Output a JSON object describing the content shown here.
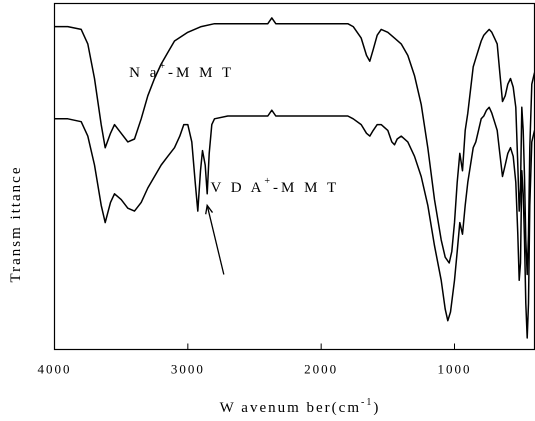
{
  "chart_data": {
    "type": "line",
    "xlabel": "W avenum ber(cm",
    "xlabel_sup": "-1",
    "xlabel_close": ")",
    "ylabel": "Transm ittance",
    "xlim": [
      4000,
      400
    ],
    "x_reversed": true,
    "xticks": [
      {
        "value": 4000,
        "label": "4000"
      },
      {
        "value": 3000,
        "label": "3000"
      },
      {
        "value": 2000,
        "label": "2000"
      },
      {
        "value": 1000,
        "label": "1000"
      }
    ],
    "y_ticks_shown": false,
    "grid": false,
    "series": [
      {
        "label_base": "N a",
        "label_sup": "+",
        "label_tail": "-M M T",
        "label_anchor_x": 3440,
        "points": [
          [
            4000,
            0.92
          ],
          [
            3900,
            0.92
          ],
          [
            3800,
            0.91
          ],
          [
            3750,
            0.86
          ],
          [
            3700,
            0.74
          ],
          [
            3650,
            0.58
          ],
          [
            3620,
            0.5
          ],
          [
            3580,
            0.55
          ],
          [
            3550,
            0.58
          ],
          [
            3500,
            0.55
          ],
          [
            3450,
            0.52
          ],
          [
            3400,
            0.53
          ],
          [
            3350,
            0.6
          ],
          [
            3300,
            0.68
          ],
          [
            3250,
            0.74
          ],
          [
            3200,
            0.79
          ],
          [
            3150,
            0.83
          ],
          [
            3100,
            0.87
          ],
          [
            3000,
            0.9
          ],
          [
            2900,
            0.92
          ],
          [
            2800,
            0.93
          ],
          [
            2600,
            0.93
          ],
          [
            2400,
            0.93
          ],
          [
            2370,
            0.95
          ],
          [
            2340,
            0.93
          ],
          [
            2300,
            0.93
          ],
          [
            2200,
            0.93
          ],
          [
            2000,
            0.93
          ],
          [
            1900,
            0.93
          ],
          [
            1800,
            0.93
          ],
          [
            1760,
            0.92
          ],
          [
            1700,
            0.88
          ],
          [
            1660,
            0.82
          ],
          [
            1635,
            0.8
          ],
          [
            1610,
            0.84
          ],
          [
            1580,
            0.89
          ],
          [
            1550,
            0.91
          ],
          [
            1500,
            0.9
          ],
          [
            1450,
            0.88
          ],
          [
            1400,
            0.86
          ],
          [
            1350,
            0.82
          ],
          [
            1300,
            0.75
          ],
          [
            1250,
            0.65
          ],
          [
            1200,
            0.5
          ],
          [
            1150,
            0.32
          ],
          [
            1100,
            0.18
          ],
          [
            1070,
            0.12
          ],
          [
            1040,
            0.1
          ],
          [
            1020,
            0.14
          ],
          [
            1000,
            0.24
          ],
          [
            980,
            0.38
          ],
          [
            960,
            0.48
          ],
          [
            940,
            0.42
          ],
          [
            920,
            0.56
          ],
          [
            900,
            0.62
          ],
          [
            880,
            0.7
          ],
          [
            860,
            0.78
          ],
          [
            840,
            0.81
          ],
          [
            820,
            0.84
          ],
          [
            800,
            0.87
          ],
          [
            780,
            0.89
          ],
          [
            760,
            0.9
          ],
          [
            740,
            0.91
          ],
          [
            720,
            0.9
          ],
          [
            700,
            0.88
          ],
          [
            680,
            0.86
          ],
          [
            660,
            0.76
          ],
          [
            640,
            0.66
          ],
          [
            620,
            0.68
          ],
          [
            600,
            0.72
          ],
          [
            580,
            0.74
          ],
          [
            560,
            0.71
          ],
          [
            540,
            0.64
          ],
          [
            525,
            0.44
          ],
          [
            515,
            0.28
          ],
          [
            505,
            0.36
          ],
          [
            495,
            0.64
          ],
          [
            485,
            0.56
          ],
          [
            475,
            0.4
          ],
          [
            465,
            0.18
          ],
          [
            455,
            0.06
          ],
          [
            445,
            0.2
          ],
          [
            435,
            0.5
          ],
          [
            420,
            0.72
          ],
          [
            400,
            0.76
          ]
        ]
      },
      {
        "label_base": "V D A",
        "label_sup": "+",
        "label_tail": "-M M T",
        "label_anchor_x": 2830,
        "points": [
          [
            4000,
            0.6
          ],
          [
            3900,
            0.6
          ],
          [
            3800,
            0.59
          ],
          [
            3750,
            0.54
          ],
          [
            3700,
            0.44
          ],
          [
            3650,
            0.3
          ],
          [
            3620,
            0.24
          ],
          [
            3580,
            0.31
          ],
          [
            3550,
            0.34
          ],
          [
            3500,
            0.32
          ],
          [
            3450,
            0.29
          ],
          [
            3400,
            0.28
          ],
          [
            3350,
            0.31
          ],
          [
            3300,
            0.36
          ],
          [
            3250,
            0.4
          ],
          [
            3200,
            0.44
          ],
          [
            3150,
            0.47
          ],
          [
            3100,
            0.5
          ],
          [
            3060,
            0.54
          ],
          [
            3030,
            0.58
          ],
          [
            3000,
            0.58
          ],
          [
            2970,
            0.52
          ],
          [
            2945,
            0.38
          ],
          [
            2925,
            0.28
          ],
          [
            2905,
            0.42
          ],
          [
            2890,
            0.49
          ],
          [
            2870,
            0.44
          ],
          [
            2855,
            0.34
          ],
          [
            2840,
            0.48
          ],
          [
            2820,
            0.58
          ],
          [
            2800,
            0.6
          ],
          [
            2700,
            0.61
          ],
          [
            2600,
            0.61
          ],
          [
            2400,
            0.61
          ],
          [
            2370,
            0.63
          ],
          [
            2340,
            0.61
          ],
          [
            2300,
            0.61
          ],
          [
            2100,
            0.61
          ],
          [
            2000,
            0.61
          ],
          [
            1900,
            0.61
          ],
          [
            1800,
            0.61
          ],
          [
            1760,
            0.6
          ],
          [
            1700,
            0.58
          ],
          [
            1660,
            0.55
          ],
          [
            1635,
            0.54
          ],
          [
            1610,
            0.56
          ],
          [
            1580,
            0.58
          ],
          [
            1550,
            0.58
          ],
          [
            1500,
            0.56
          ],
          [
            1470,
            0.52
          ],
          [
            1450,
            0.51
          ],
          [
            1430,
            0.53
          ],
          [
            1400,
            0.54
          ],
          [
            1350,
            0.52
          ],
          [
            1300,
            0.47
          ],
          [
            1250,
            0.4
          ],
          [
            1200,
            0.3
          ],
          [
            1150,
            0.16
          ],
          [
            1100,
            0.04
          ],
          [
            1070,
            -0.06
          ],
          [
            1050,
            -0.1
          ],
          [
            1030,
            -0.07
          ],
          [
            1000,
            0.04
          ],
          [
            980,
            0.14
          ],
          [
            960,
            0.24
          ],
          [
            940,
            0.2
          ],
          [
            920,
            0.3
          ],
          [
            900,
            0.38
          ],
          [
            880,
            0.44
          ],
          [
            860,
            0.5
          ],
          [
            840,
            0.52
          ],
          [
            820,
            0.56
          ],
          [
            800,
            0.6
          ],
          [
            780,
            0.61
          ],
          [
            760,
            0.63
          ],
          [
            740,
            0.64
          ],
          [
            720,
            0.62
          ],
          [
            700,
            0.59
          ],
          [
            680,
            0.56
          ],
          [
            660,
            0.48
          ],
          [
            640,
            0.4
          ],
          [
            620,
            0.44
          ],
          [
            600,
            0.48
          ],
          [
            580,
            0.5
          ],
          [
            560,
            0.47
          ],
          [
            540,
            0.38
          ],
          [
            525,
            0.2
          ],
          [
            515,
            0.04
          ],
          [
            505,
            0.1
          ],
          [
            495,
            0.42
          ],
          [
            485,
            0.34
          ],
          [
            475,
            0.18
          ],
          [
            465,
            -0.04
          ],
          [
            455,
            -0.16
          ],
          [
            445,
            -0.04
          ],
          [
            435,
            0.3
          ],
          [
            420,
            0.52
          ],
          [
            400,
            0.56
          ]
        ]
      }
    ],
    "annotations": [
      {
        "type": "arrow",
        "from": [
          2730,
          0.06
        ],
        "to": [
          2855,
          0.3
        ]
      }
    ]
  }
}
